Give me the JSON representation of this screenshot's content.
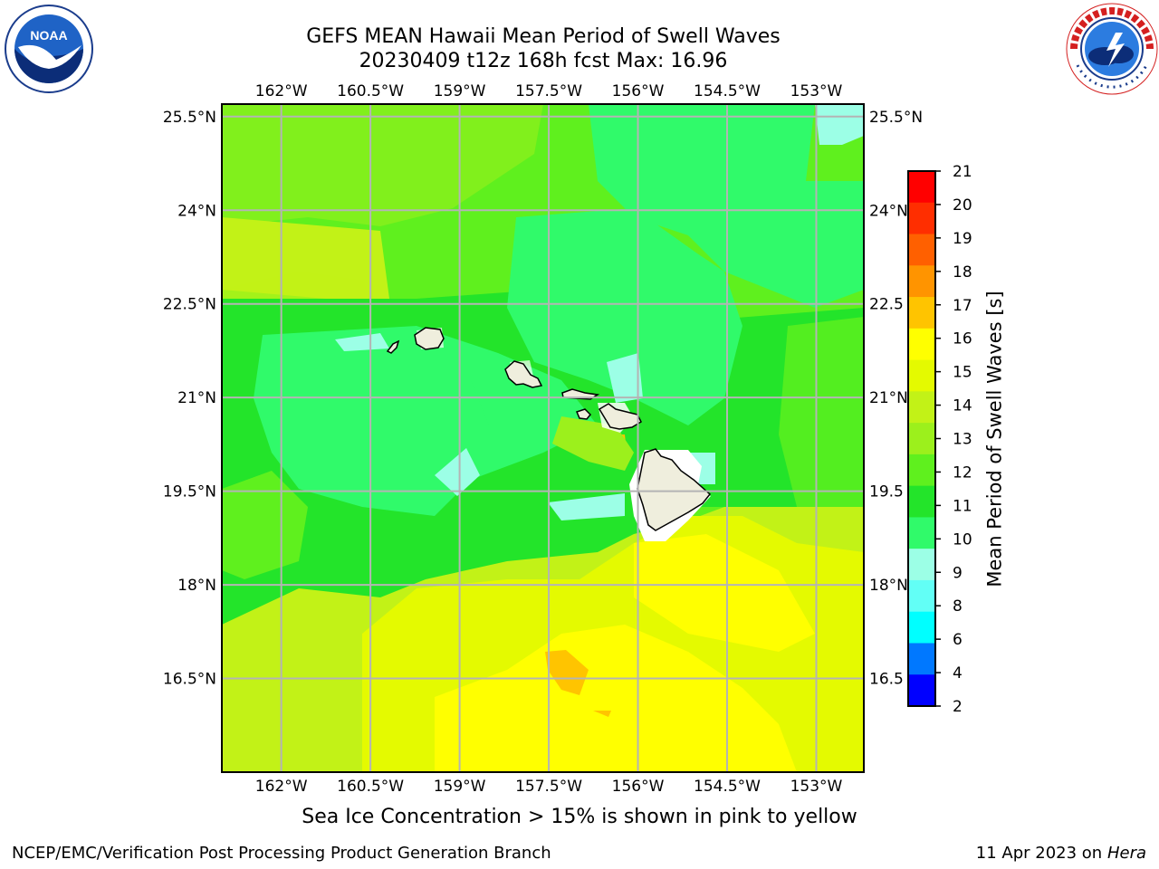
{
  "title": {
    "line1": "GEFS MEAN Hawaii Mean Period of Swell Waves",
    "line2": "20230409 t12z 168h fcst   Max: 16.96"
  },
  "map": {
    "lon_labels": [
      "162°W",
      "160.5°W",
      "159°W",
      "157.5°W",
      "156°W",
      "154.5°W",
      "153°W"
    ],
    "lon_values": [
      -162,
      -160.5,
      -159,
      -157.5,
      -156,
      -154.5,
      -153
    ],
    "lat_labels_left": [
      "25.5°N",
      "24°N",
      "22.5°N",
      "21°N",
      "19.5°N",
      "18°N",
      "16.5°N"
    ],
    "lat_labels_right": [
      "25.5°N",
      "24°N",
      "22.5",
      "21°N",
      "19.5",
      "18°N",
      "16.5"
    ],
    "lat_values": [
      25.5,
      24,
      22.5,
      21,
      19.5,
      18,
      16.5
    ],
    "extent": {
      "lon_min": -163,
      "lon_max": -152.2,
      "lat_min": 15,
      "lat_max": 25.7
    },
    "colors": {
      "low_green": "#2ee22e",
      "mid_green": "#7ff04e",
      "yellow_green": "#c8f028",
      "yellow": "#ffff00",
      "aqua": "#5cf8a0",
      "cyan": "#a0fff0",
      "orange": "#ffc000",
      "land": "#efeedd",
      "grid": "#b4b4b4"
    }
  },
  "colorbar": {
    "label": "Mean Period of Swell Waves [s]",
    "ticks": [
      "21",
      "20",
      "19",
      "18",
      "17",
      "16",
      "15",
      "14",
      "13",
      "12",
      "11",
      "10",
      "9",
      "8",
      "6",
      "4",
      "2"
    ],
    "colors": [
      "#ff0000",
      "#ff2e00",
      "#ff6000",
      "#ff9400",
      "#ffc400",
      "#ffff00",
      "#e4fa00",
      "#c2f217",
      "#9cf01c",
      "#5ff01e",
      "#23e42a",
      "#30fa6a",
      "#9cffe6",
      "#62fff6",
      "#00ffff",
      "#0078ff",
      "#0000ff"
    ]
  },
  "caption": "Sea Ice Concentration > 15% is shown in pink to yellow",
  "footer": {
    "left": "NCEP/EMC/Verification Post Processing Product Generation Branch",
    "right_prefix": "11 Apr 2023 on ",
    "right_machine": "Hera"
  },
  "logos": {
    "left": "noaa-logo",
    "right": "nws-logo"
  }
}
